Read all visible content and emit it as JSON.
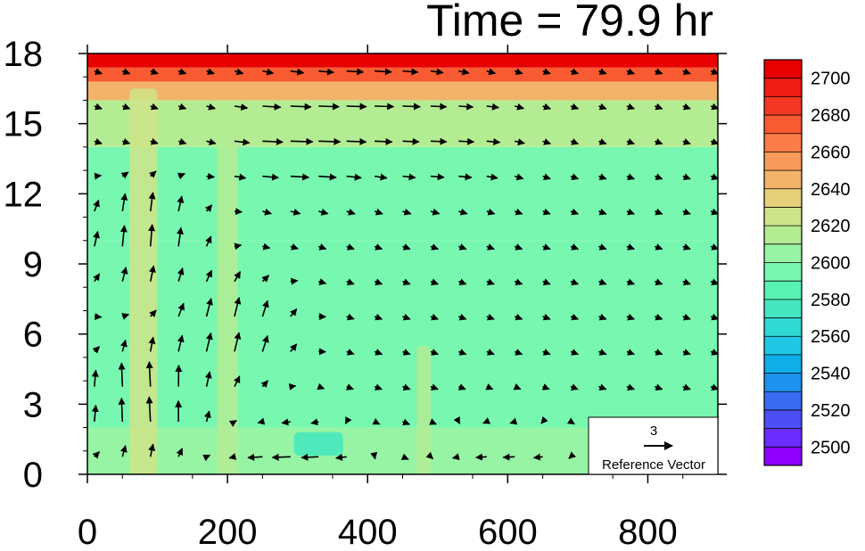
{
  "chart_data": {
    "type": "heatmap",
    "title": "Time = 79.9 hr",
    "xlabel": "",
    "ylabel": "",
    "xlim": [
      0,
      900
    ],
    "ylim": [
      0,
      18
    ],
    "x_ticks": [
      "0",
      "200",
      "400",
      "600",
      "800"
    ],
    "x_tick_values": [
      0,
      200,
      400,
      600,
      800
    ],
    "y_ticks": [
      "0",
      "3",
      "6",
      "9",
      "12",
      "15",
      "18"
    ],
    "y_tick_values": [
      0,
      3,
      6,
      9,
      12,
      15,
      18
    ],
    "colorbar": {
      "min": 2490,
      "max": 2710,
      "step": 10,
      "labels": [
        "2500",
        "2520",
        "2540",
        "2560",
        "2580",
        "2600",
        "2620",
        "2640",
        "2660",
        "2680",
        "2700"
      ],
      "label_values": [
        2500,
        2520,
        2540,
        2560,
        2580,
        2600,
        2620,
        2640,
        2660,
        2680,
        2700
      ],
      "colors": [
        "#8f00ff",
        "#6a2cff",
        "#4d4df5",
        "#3a6cf2",
        "#1d92ee",
        "#0faee8",
        "#20c8e6",
        "#30d8d4",
        "#44e6c0",
        "#5af2b4",
        "#78f7b0",
        "#96f4a4",
        "#b4ec94",
        "#cfe488",
        "#e6d07a",
        "#f2b46a",
        "#f89a5a",
        "#fa7c46",
        "#f85a32",
        "#f23822",
        "#ee1c12",
        "#e80000"
      ]
    },
    "field_levels": [
      {
        "y_min": 0,
        "y_max": 2,
        "value": 2602
      },
      {
        "y_min": 2,
        "y_max": 10,
        "value": 2592
      },
      {
        "y_min": 10,
        "y_max": 14,
        "value": 2598
      },
      {
        "y_min": 14,
        "y_max": 16,
        "value": 2612
      },
      {
        "y_min": 16,
        "y_max": 16.8,
        "value": 2640
      },
      {
        "y_min": 16.8,
        "y_max": 17.4,
        "value": 2672
      },
      {
        "y_min": 17.4,
        "y_max": 18,
        "value": 2702
      }
    ],
    "field_anomalies": [
      {
        "x_center": 80,
        "x_width": 40,
        "y_min": 0,
        "y_max": 16.5,
        "value": 2620
      },
      {
        "x_center": 200,
        "x_width": 30,
        "y_min": 0,
        "y_max": 15.5,
        "value": 2615
      },
      {
        "x_center": 330,
        "x_width": 70,
        "y_min": 0.8,
        "y_max": 1.8,
        "value": 2572
      },
      {
        "x_center": 480,
        "x_width": 20,
        "y_min": 0,
        "y_max": 5.5,
        "value": 2610
      }
    ],
    "vectors": {
      "description": "wind vectors (u in x-units per y-unit direction; drawn on regular grid)",
      "grid_dx": 40,
      "grid_dy": 1.5,
      "samples": [
        {
          "x": 80,
          "y": 3,
          "u": -0.5,
          "w": 6.5
        },
        {
          "x": 80,
          "y": 10,
          "u": 0,
          "w": 5.5
        },
        {
          "x": 200,
          "y": 6,
          "u": 0.4,
          "w": 5
        },
        {
          "x": 300,
          "y": 14.5,
          "u": 3,
          "w": 0
        },
        {
          "x": 400,
          "y": 15.8,
          "u": 2.5,
          "w": 0
        },
        {
          "x": 500,
          "y": 14.5,
          "u": 2,
          "w": 0
        },
        {
          "x": 300,
          "y": 0.2,
          "u": -3,
          "w": 0
        },
        {
          "x": 600,
          "y": 0.2,
          "u": -2,
          "w": 0
        }
      ]
    },
    "reference_vector": {
      "value": "3",
      "label": "Reference Vector"
    }
  }
}
